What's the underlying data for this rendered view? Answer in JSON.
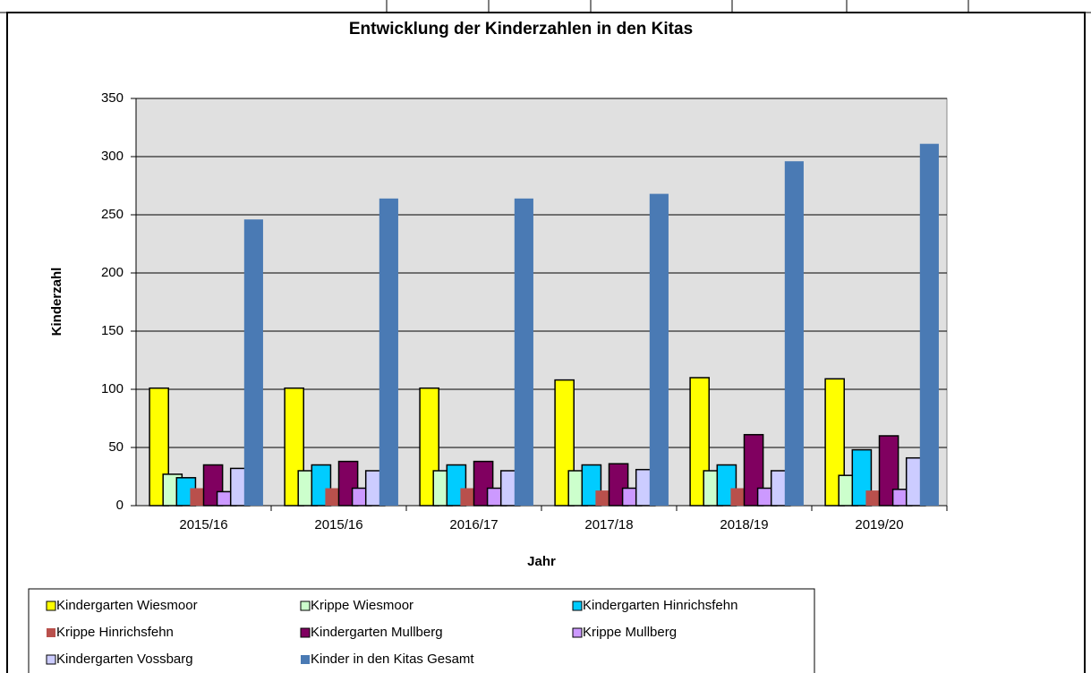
{
  "chart_data": {
    "type": "bar",
    "title": "Entwicklung der Kinderzahlen in den Kitas",
    "x_label": "Jahr",
    "y_label": "Kinderzahl",
    "categories": [
      "2015/16",
      "2015/16",
      "2016/17",
      "2017/18",
      "2018/19",
      "2019/20"
    ],
    "series": [
      {
        "name": "Kindergarten Wiesmoor",
        "color": "#ffff00",
        "values": [
          101,
          101,
          101,
          108,
          110,
          109
        ]
      },
      {
        "name": "Krippe Wiesmoor",
        "color": "#ccffcc",
        "values": [
          27,
          30,
          30,
          30,
          30,
          26
        ]
      },
      {
        "name": "Kindergarten Hinrichsfehn",
        "color": "#00ccff",
        "values": [
          24,
          35,
          35,
          35,
          35,
          48
        ]
      },
      {
        "name": "Krippe Hinrichsfehn",
        "color": "#b9504c",
        "values": [
          15,
          15,
          15,
          13,
          15,
          13
        ]
      },
      {
        "name": "Kindergarten Mullberg",
        "color": "#800060",
        "values": [
          35,
          38,
          38,
          36,
          61,
          60
        ]
      },
      {
        "name": "Krippe Mullberg",
        "color": "#cc99ff",
        "values": [
          12,
          15,
          15,
          15,
          15,
          14
        ]
      },
      {
        "name": "Kindergarten Vossbarg",
        "color": "#ccccff",
        "values": [
          32,
          30,
          30,
          31,
          30,
          41
        ]
      },
      {
        "name": "Kinder in den Kitas Gesamt",
        "color": "#4a7ab4",
        "values": [
          246,
          264,
          264,
          268,
          296,
          311
        ]
      }
    ],
    "ylim": [
      0,
      350
    ],
    "yticks": [
      0,
      50,
      100,
      150,
      200,
      250,
      300,
      350
    ],
    "grid": true,
    "legend": "bottom"
  }
}
